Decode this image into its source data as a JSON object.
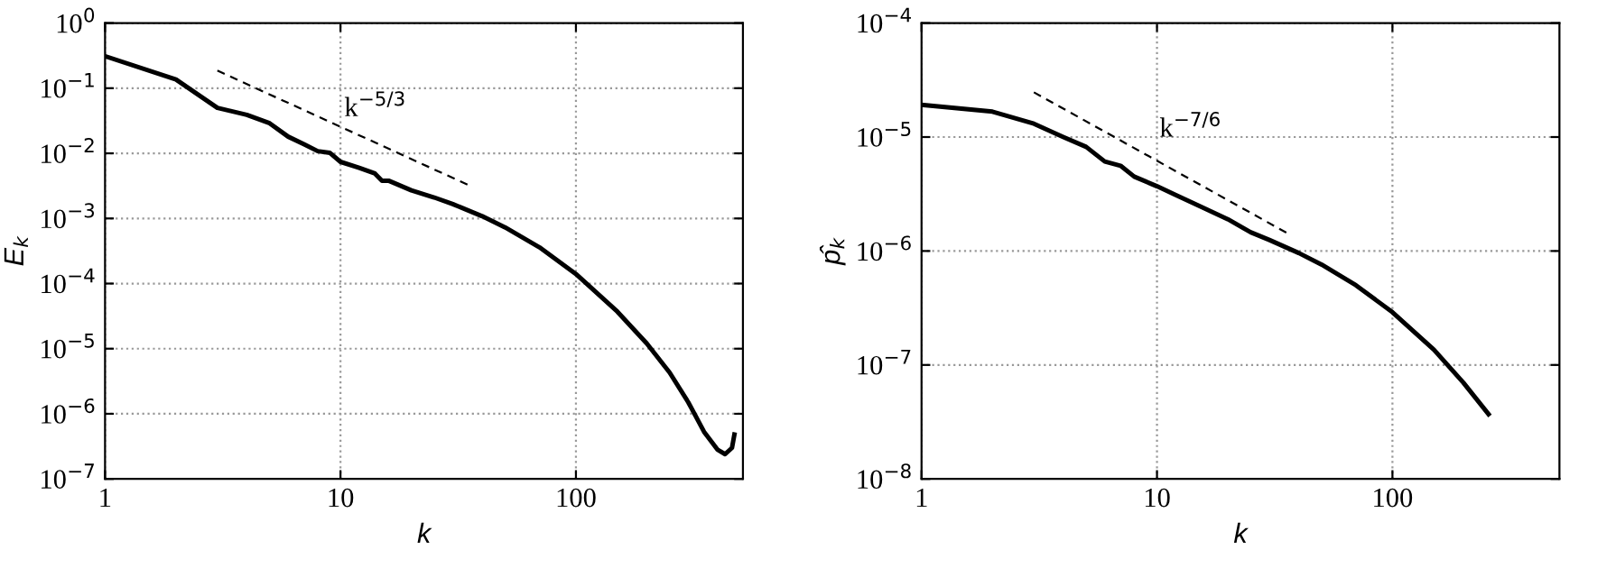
{
  "chart_data": [
    {
      "type": "line",
      "xlabel": "k",
      "ylabel": "E$_{k}$",
      "log": "xy",
      "grid": true,
      "xlim": [
        1,
        512
      ],
      "ylim": [
        1e-07,
        1
      ],
      "xticks": [
        1,
        10,
        100
      ],
      "yticks": [
        {
          "value": 1e-07,
          "label": "10$^{−7}$"
        },
        {
          "value": 1e-06,
          "label": "10$^{−6}$"
        },
        {
          "value": 1e-05,
          "label": "10$^{−5}$"
        },
        {
          "value": 0.0001,
          "label": "10$^{−4}$"
        },
        {
          "value": 0.001,
          "label": "10$^{−3}$"
        },
        {
          "value": 0.01,
          "label": "10$^{−2}$"
        },
        {
          "value": 0.1,
          "label": "10$^{−1}$"
        },
        {
          "value": 1,
          "label": "10$^{0}$"
        }
      ],
      "series": [
        {
          "color": "#000000",
          "line_style": "solid",
          "x": [
            1,
            2,
            3,
            4,
            5,
            6,
            7,
            8,
            9,
            10,
            12,
            14,
            15,
            16,
            20,
            25,
            30,
            40,
            50,
            70,
            100,
            150,
            200,
            250,
            300,
            350,
            400,
            430,
            460,
            471
          ],
          "values": [
            0.31,
            0.136,
            0.05,
            0.039,
            0.029,
            0.018,
            0.0138,
            0.0108,
            0.0102,
            0.0074,
            0.006,
            0.0049,
            0.0038,
            0.0038,
            0.0027,
            0.0021,
            0.00166,
            0.00108,
            0.00073,
            0.00036,
            0.00014,
            3.7e-05,
            1.2e-05,
            4.3e-06,
            1.5e-06,
            5.3e-07,
            2.8e-07,
            2.4e-07,
            3e-07,
            4.8e-07
          ]
        },
        {
          "color": "#000000",
          "line_style": "dashed",
          "x": [
            3,
            36
          ],
          "values": [
            0.186,
            0.0031
          ]
        }
      ],
      "annotations": [
        "k$^{−5/3}$"
      ]
    },
    {
      "type": "line",
      "xlabel": "k",
      "ylabel": "p̂$_{k}$",
      "log": "xy",
      "grid": true,
      "xlim": [
        1,
        512
      ],
      "ylim": [
        1e-08,
        0.0001
      ],
      "xticks": [
        1,
        10,
        100
      ],
      "yticks": [
        {
          "value": 1e-08,
          "label": "10$^{−8}$"
        },
        {
          "value": 1e-07,
          "label": "10$^{−7}$"
        },
        {
          "value": 1e-06,
          "label": "10$^{−6}$"
        },
        {
          "value": 1e-05,
          "label": "10$^{−5}$"
        },
        {
          "value": 0.0001,
          "label": "10$^{−4}$"
        }
      ],
      "series": [
        {
          "color": "#000000",
          "line_style": "solid",
          "x": [
            1,
            2,
            3,
            4,
            5,
            6,
            7,
            8,
            10,
            12,
            15,
            20,
            25,
            30,
            40,
            50,
            70,
            100,
            150,
            200,
            256
          ],
          "values": [
            1.92e-05,
            1.67e-05,
            1.31e-05,
            1e-05,
            8.2e-06,
            6.1e-06,
            5.6e-06,
            4.5e-06,
            3.7e-06,
            3.1e-06,
            2.5e-06,
            1.9e-06,
            1.46e-06,
            1.25e-06,
            9.6e-07,
            7.6e-07,
            5e-07,
            2.9e-07,
            1.36e-07,
            7e-08,
            3.7e-08
          ]
        },
        {
          "color": "#000000",
          "line_style": "dashed",
          "x": [
            3,
            36.5
          ],
          "values": [
            2.47e-05,
            1.4e-06
          ]
        }
      ],
      "annotations": [
        "k$^{−7/6}$"
      ]
    }
  ]
}
